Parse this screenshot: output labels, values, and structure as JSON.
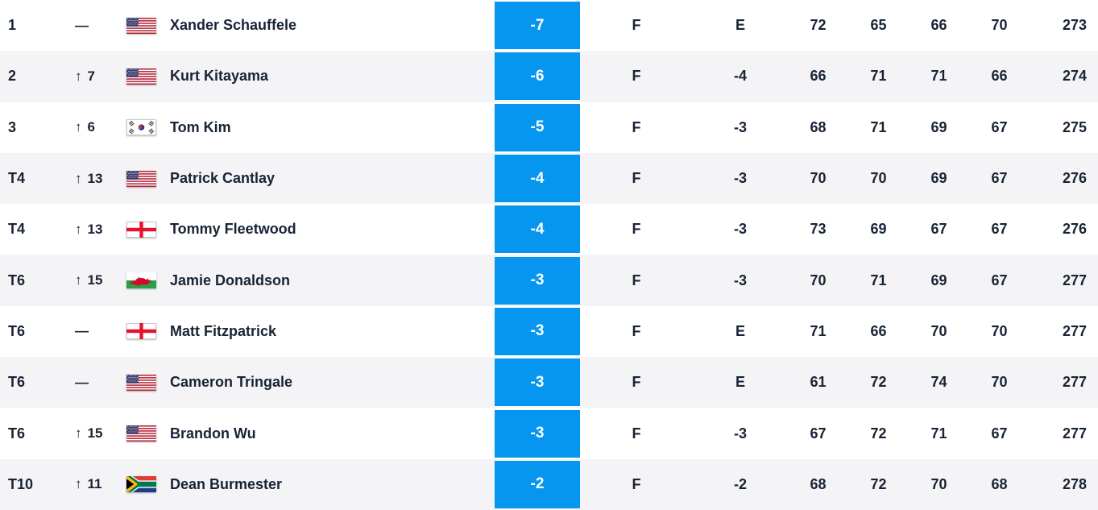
{
  "icons": {
    "up_arrow": "↑"
  },
  "colors": {
    "accent": "#0696F0",
    "alt_row": "#F4F4F6",
    "text": "#182335",
    "chip_text": "#FFFFFF"
  },
  "table": {
    "rows": [
      {
        "pos": "1",
        "move": {
          "dir": "same",
          "label": "—"
        },
        "country": "usa",
        "country_name": "United States",
        "player": "Xander Schauffele",
        "score": "-7",
        "thru": "F",
        "today": "E",
        "r1": "72",
        "r2": "65",
        "r3": "66",
        "r4": "70",
        "total": "273"
      },
      {
        "pos": "2",
        "move": {
          "dir": "up",
          "value": "7"
        },
        "country": "usa",
        "country_name": "United States",
        "player": "Kurt Kitayama",
        "score": "-6",
        "thru": "F",
        "today": "-4",
        "r1": "66",
        "r2": "71",
        "r3": "71",
        "r4": "66",
        "total": "274"
      },
      {
        "pos": "3",
        "move": {
          "dir": "up",
          "value": "6"
        },
        "country": "kor",
        "country_name": "South Korea",
        "player": "Tom Kim",
        "score": "-5",
        "thru": "F",
        "today": "-3",
        "r1": "68",
        "r2": "71",
        "r3": "69",
        "r4": "67",
        "total": "275"
      },
      {
        "pos": "T4",
        "move": {
          "dir": "up",
          "value": "13"
        },
        "country": "usa",
        "country_name": "United States",
        "player": "Patrick Cantlay",
        "score": "-4",
        "thru": "F",
        "today": "-3",
        "r1": "70",
        "r2": "70",
        "r3": "69",
        "r4": "67",
        "total": "276"
      },
      {
        "pos": "T4",
        "move": {
          "dir": "up",
          "value": "13"
        },
        "country": "eng",
        "country_name": "England",
        "player": "Tommy Fleetwood",
        "score": "-4",
        "thru": "F",
        "today": "-3",
        "r1": "73",
        "r2": "69",
        "r3": "67",
        "r4": "67",
        "total": "276"
      },
      {
        "pos": "T6",
        "move": {
          "dir": "up",
          "value": "15"
        },
        "country": "wal",
        "country_name": "Wales",
        "player": "Jamie Donaldson",
        "score": "-3",
        "thru": "F",
        "today": "-3",
        "r1": "70",
        "r2": "71",
        "r3": "69",
        "r4": "67",
        "total": "277"
      },
      {
        "pos": "T6",
        "move": {
          "dir": "same",
          "label": "—"
        },
        "country": "eng",
        "country_name": "England",
        "player": "Matt Fitzpatrick",
        "score": "-3",
        "thru": "F",
        "today": "E",
        "r1": "71",
        "r2": "66",
        "r3": "70",
        "r4": "70",
        "total": "277"
      },
      {
        "pos": "T6",
        "move": {
          "dir": "same",
          "label": "—"
        },
        "country": "usa",
        "country_name": "United States",
        "player": "Cameron Tringale",
        "score": "-3",
        "thru": "F",
        "today": "E",
        "r1": "61",
        "r2": "72",
        "r3": "74",
        "r4": "70",
        "total": "277"
      },
      {
        "pos": "T6",
        "move": {
          "dir": "up",
          "value": "15"
        },
        "country": "usa",
        "country_name": "United States",
        "player": "Brandon Wu",
        "score": "-3",
        "thru": "F",
        "today": "-3",
        "r1": "67",
        "r2": "72",
        "r3": "71",
        "r4": "67",
        "total": "277"
      },
      {
        "pos": "T10",
        "move": {
          "dir": "up",
          "value": "11"
        },
        "country": "rsa",
        "country_name": "South Africa",
        "player": "Dean Burmester",
        "score": "-2",
        "thru": "F",
        "today": "-2",
        "r1": "68",
        "r2": "72",
        "r3": "70",
        "r4": "68",
        "total": "278"
      }
    ]
  }
}
